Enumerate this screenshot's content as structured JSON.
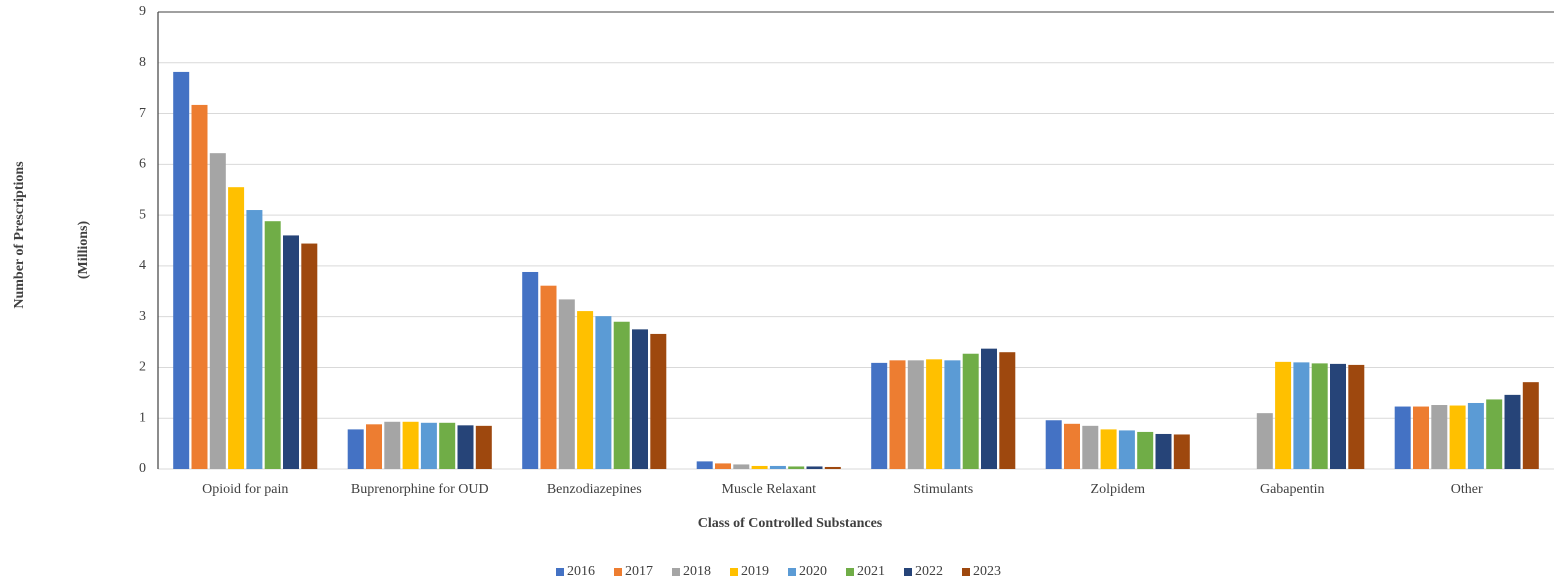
{
  "chart_data": {
    "type": "bar",
    "xlabel": "Class of Controlled Substances",
    "ylabel": "Number of Prescriptions",
    "ylabel_units": "(Millions)",
    "categories": [
      "Opioid for pain",
      "Buprenorphine for OUD",
      "Benzodiazepines",
      "Muscle Relaxant",
      "Stimulants",
      "Zolpidem",
      "Gabapentin",
      "Other"
    ],
    "series": [
      {
        "name": "2016",
        "color": "#4472c4",
        "values": [
          7.82,
          0.78,
          3.88,
          0.15,
          2.09,
          0.96,
          null,
          1.23
        ]
      },
      {
        "name": "2017",
        "color": "#ed7d31",
        "values": [
          7.17,
          0.88,
          3.61,
          0.11,
          2.14,
          0.89,
          null,
          1.23
        ]
      },
      {
        "name": "2018",
        "color": "#a5a5a5",
        "values": [
          6.22,
          0.93,
          3.34,
          0.09,
          2.14,
          0.85,
          1.1,
          1.26
        ]
      },
      {
        "name": "2019",
        "color": "#ffc000",
        "values": [
          5.55,
          0.93,
          3.11,
          0.06,
          2.16,
          0.78,
          2.11,
          1.25
        ]
      },
      {
        "name": "2020",
        "color": "#5b9bd5",
        "values": [
          5.1,
          0.91,
          3.01,
          0.06,
          2.14,
          0.76,
          2.1,
          1.3
        ]
      },
      {
        "name": "2021",
        "color": "#70ad47",
        "values": [
          4.88,
          0.91,
          2.9,
          0.05,
          2.27,
          0.73,
          2.08,
          1.37
        ]
      },
      {
        "name": "2022",
        "color": "#264478",
        "values": [
          4.6,
          0.86,
          2.75,
          0.05,
          2.37,
          0.69,
          2.07,
          1.46
        ]
      },
      {
        "name": "2023",
        "color": "#9e480e",
        "values": [
          4.44,
          0.85,
          2.66,
          0.04,
          2.3,
          0.68,
          2.05,
          1.71
        ]
      }
    ],
    "ylim": [
      0,
      9
    ],
    "yticks": [
      0,
      1,
      2,
      3,
      4,
      5,
      6,
      7,
      8,
      9
    ],
    "grid": true,
    "legend": "bottom"
  }
}
